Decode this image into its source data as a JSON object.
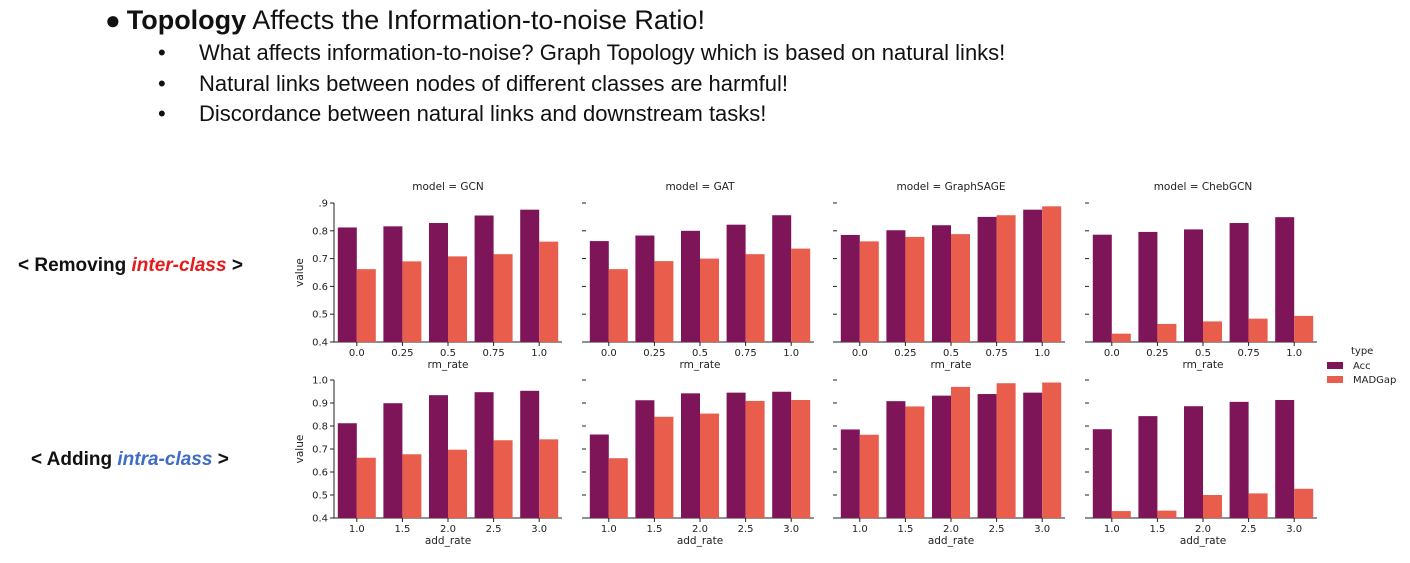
{
  "slide": {
    "bullet_glyph": "●",
    "title_strong": "Topology",
    "title_rest": " Affects the Information-to-noise Ratio!",
    "sub_bullet_glyph": "•",
    "bullets": [
      "What affects information-to-noise? Graph Topology which is based on natural links!",
      "Natural links between nodes of different classes are harmful!",
      "Discordance between natural links and downstream tasks!"
    ],
    "row_labels": [
      {
        "prefix": "< Removing ",
        "emphasis": "inter-class",
        "suffix": " >",
        "color": "#e8191b"
      },
      {
        "prefix": "< Adding ",
        "emphasis": "intra-class",
        "suffix": " >",
        "color": "#3f6cc6"
      }
    ]
  },
  "chart_data": {
    "type": "bar",
    "legend": {
      "title": "type",
      "entries": [
        "Acc",
        "MADGap"
      ],
      "placement": "right"
    },
    "colors": {
      "Acc": "#7e1558",
      "MADGap": "#e85d4c"
    },
    "ylabel": "value",
    "rows": [
      {
        "xlabel": "rm_rate",
        "categories": [
          "0.0",
          "0.25",
          "0.5",
          "0.75",
          "1.0"
        ],
        "ylim": [
          0.4,
          0.9
        ],
        "yticks": [
          ".9",
          "0.8",
          "0.7",
          "0.6",
          "0.5",
          "0.4"
        ],
        "ytick_values": [
          0.9,
          0.8,
          0.7,
          0.6,
          0.5,
          0.4
        ],
        "panels": [
          {
            "title": "model = GCN",
            "series": [
              {
                "name": "Acc",
                "values": [
                  0.812,
                  0.816,
                  0.828,
                  0.855,
                  0.876
                ]
              },
              {
                "name": "MADGap",
                "values": [
                  0.662,
                  0.69,
                  0.708,
                  0.716,
                  0.761
                ]
              }
            ]
          },
          {
            "title": "model = GAT",
            "series": [
              {
                "name": "Acc",
                "values": [
                  0.763,
                  0.783,
                  0.8,
                  0.822,
                  0.856
                ]
              },
              {
                "name": "MADGap",
                "values": [
                  0.662,
                  0.691,
                  0.7,
                  0.716,
                  0.736
                ]
              }
            ]
          },
          {
            "title": "model = GraphSAGE",
            "series": [
              {
                "name": "Acc",
                "values": [
                  0.785,
                  0.802,
                  0.82,
                  0.85,
                  0.876
                ]
              },
              {
                "name": "MADGap",
                "values": [
                  0.762,
                  0.778,
                  0.788,
                  0.856,
                  0.888
                ]
              }
            ]
          },
          {
            "title": "model = ChebGCN",
            "series": [
              {
                "name": "Acc",
                "values": [
                  0.786,
                  0.796,
                  0.805,
                  0.828,
                  0.849
                ]
              },
              {
                "name": "MADGap",
                "values": [
                  0.43,
                  0.465,
                  0.474,
                  0.484,
                  0.494
                ]
              }
            ]
          }
        ]
      },
      {
        "xlabel": "add_rate",
        "categories": [
          "1.0",
          "1.5",
          "2.0",
          "2.5",
          "3.0"
        ],
        "ylim": [
          0.4,
          1.0
        ],
        "yticks": [
          "1.0",
          "0.9",
          "0.8",
          "0.7",
          "0.6",
          "0.5",
          "0.4"
        ],
        "ytick_values": [
          1.0,
          0.9,
          0.8,
          0.7,
          0.6,
          0.5,
          0.4
        ],
        "panels": [
          {
            "title": "",
            "series": [
              {
                "name": "Acc",
                "values": [
                  0.812,
                  0.899,
                  0.934,
                  0.947,
                  0.953
                ]
              },
              {
                "name": "MADGap",
                "values": [
                  0.662,
                  0.677,
                  0.697,
                  0.738,
                  0.742
                ]
              }
            ]
          },
          {
            "title": "",
            "series": [
              {
                "name": "Acc",
                "values": [
                  0.763,
                  0.912,
                  0.942,
                  0.945,
                  0.949
                ]
              },
              {
                "name": "MADGap",
                "values": [
                  0.66,
                  0.84,
                  0.854,
                  0.909,
                  0.913
                ]
              }
            ]
          },
          {
            "title": "",
            "series": [
              {
                "name": "Acc",
                "values": [
                  0.785,
                  0.908,
                  0.932,
                  0.939,
                  0.945
                ]
              },
              {
                "name": "MADGap",
                "values": [
                  0.762,
                  0.885,
                  0.97,
                  0.986,
                  0.989
                ]
              }
            ]
          },
          {
            "title": "",
            "series": [
              {
                "name": "Acc",
                "values": [
                  0.786,
                  0.843,
                  0.886,
                  0.905,
                  0.913
                ]
              },
              {
                "name": "MADGap",
                "values": [
                  0.43,
                  0.432,
                  0.5,
                  0.507,
                  0.527
                ]
              }
            ]
          }
        ]
      }
    ]
  }
}
